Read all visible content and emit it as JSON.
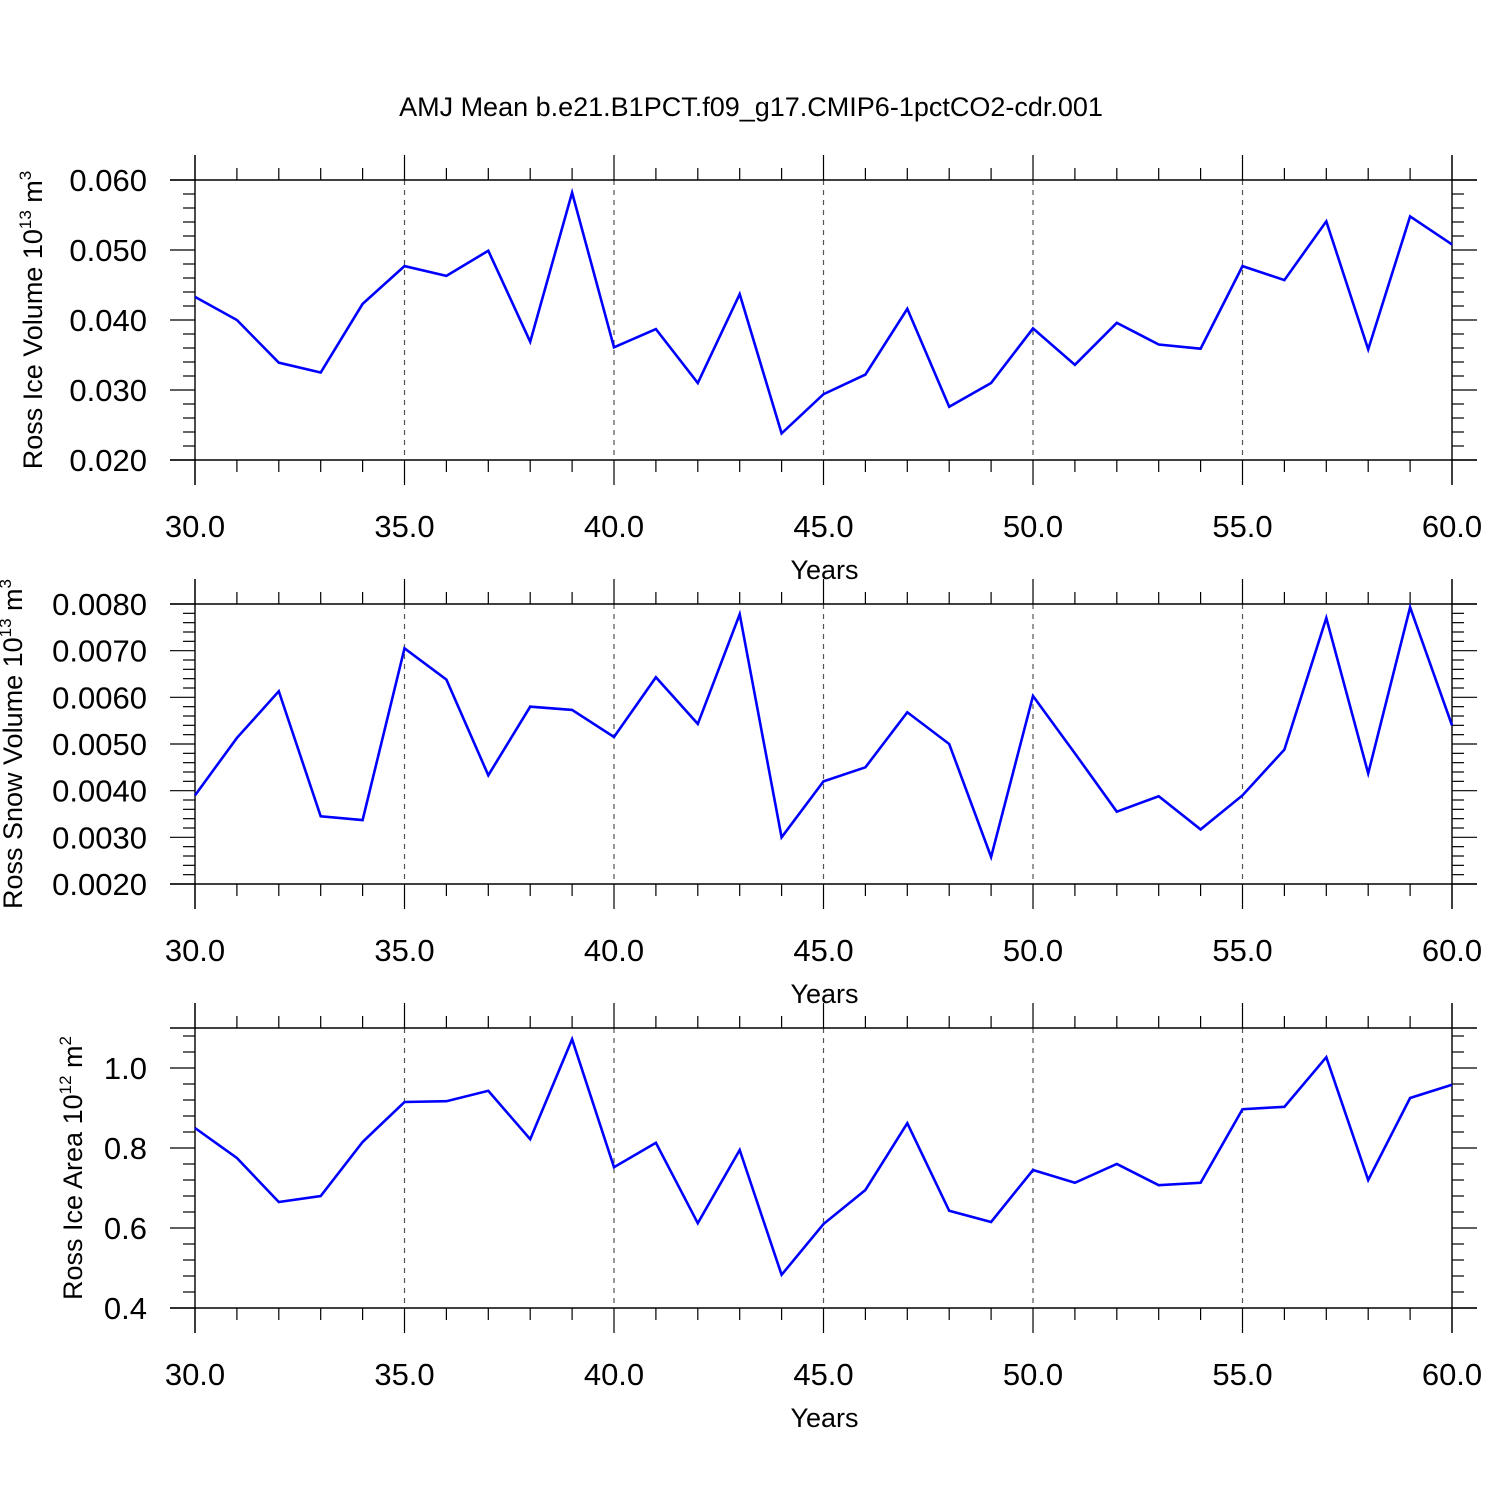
{
  "title": "AMJ Mean b.e21.B1PCT.f09_g17.CMIP6-1pctCO2-cdr.001",
  "colors": {
    "series": "#0000ff",
    "axis": "#000000",
    "grid": "#555555"
  },
  "chart_data": [
    {
      "type": "line",
      "ylabel": {
        "text": "Ross Ice Volume 10",
        "sup": "13",
        "unit": " m",
        "unit_sup": "3"
      },
      "xlabel": "Years",
      "xlim": [
        30,
        60
      ],
      "ylim": [
        0.02,
        0.06
      ],
      "xticks": [
        "30.0",
        "35.0",
        "40.0",
        "45.0",
        "50.0",
        "55.0",
        "60.0"
      ],
      "yticks": [
        "0.020",
        "0.030",
        "0.040",
        "0.050",
        "0.060"
      ],
      "grid": "vertical dashed at major x ticks",
      "x": [
        30,
        31,
        32,
        33,
        34,
        35,
        36,
        37,
        38,
        39,
        40,
        41,
        42,
        43,
        44,
        45,
        46,
        47,
        48,
        49,
        50,
        51,
        52,
        53,
        54,
        55,
        56,
        57,
        58,
        59,
        60
      ],
      "series": [
        {
          "values": [
            0.0433,
            0.04,
            0.0339,
            0.0325,
            0.0423,
            0.0477,
            0.0463,
            0.0499,
            0.0369,
            0.0582,
            0.0361,
            0.0387,
            0.031,
            0.0437,
            0.0238,
            0.0294,
            0.0322,
            0.0416,
            0.0276,
            0.031,
            0.0388,
            0.0336,
            0.0396,
            0.0365,
            0.0359,
            0.0477,
            0.0457,
            0.0541,
            0.0358,
            0.0548,
            0.0508
          ]
        }
      ]
    },
    {
      "type": "line",
      "ylabel": {
        "text": "Ross Snow Volume 10",
        "sup": "13",
        "unit": " m",
        "unit_sup": "3"
      },
      "xlabel": "Years",
      "xlim": [
        30,
        60
      ],
      "ylim": [
        0.002,
        0.008
      ],
      "xticks": [
        "30.0",
        "35.0",
        "40.0",
        "45.0",
        "50.0",
        "55.0",
        "60.0"
      ],
      "yticks": [
        "0.0020",
        "0.0030",
        "0.0040",
        "0.0050",
        "0.0060",
        "0.0070",
        "0.0080"
      ],
      "grid": "vertical dashed at major x ticks",
      "x": [
        30,
        31,
        32,
        33,
        34,
        35,
        36,
        37,
        38,
        39,
        40,
        41,
        42,
        43,
        44,
        45,
        46,
        47,
        48,
        49,
        50,
        51,
        52,
        53,
        54,
        55,
        56,
        57,
        58,
        59,
        60
      ],
      "series": [
        {
          "values": [
            0.0039,
            0.00513,
            0.00613,
            0.00345,
            0.00337,
            0.00705,
            0.00638,
            0.00433,
            0.0058,
            0.00573,
            0.00515,
            0.00643,
            0.00543,
            0.00778,
            0.003,
            0.0042,
            0.0045,
            0.00568,
            0.005,
            0.00258,
            0.00603,
            0.0048,
            0.00355,
            0.00388,
            0.00317,
            0.0039,
            0.00488,
            0.0077,
            0.00437,
            0.00793,
            0.0054
          ]
        }
      ]
    },
    {
      "type": "line",
      "ylabel": {
        "text": "Ross Ice Area 10",
        "sup": "12",
        "unit": " m",
        "unit_sup": "2"
      },
      "xlabel": "Years",
      "xlim": [
        30,
        60
      ],
      "ylim": [
        0.4,
        1.1
      ],
      "xticks": [
        "30.0",
        "35.0",
        "40.0",
        "45.0",
        "50.0",
        "55.0",
        "60.0"
      ],
      "yticks": [
        "0.4",
        "0.6",
        "0.8",
        "1.0"
      ],
      "yticks_values": [
        0.4,
        0.6,
        0.8,
        1.0
      ],
      "grid": "vertical dashed at major x ticks",
      "x": [
        30,
        31,
        32,
        33,
        34,
        35,
        36,
        37,
        38,
        39,
        40,
        41,
        42,
        43,
        44,
        45,
        46,
        47,
        48,
        49,
        50,
        51,
        52,
        53,
        54,
        55,
        56,
        57,
        58,
        59,
        60
      ],
      "series": [
        {
          "values": [
            0.85,
            0.775,
            0.665,
            0.68,
            0.815,
            0.915,
            0.917,
            0.943,
            0.822,
            1.072,
            0.752,
            0.813,
            0.612,
            0.795,
            0.483,
            0.61,
            0.695,
            0.862,
            0.643,
            0.615,
            0.745,
            0.713,
            0.76,
            0.707,
            0.713,
            0.897,
            0.903,
            1.027,
            0.72,
            0.925,
            0.958
          ]
        }
      ]
    }
  ]
}
